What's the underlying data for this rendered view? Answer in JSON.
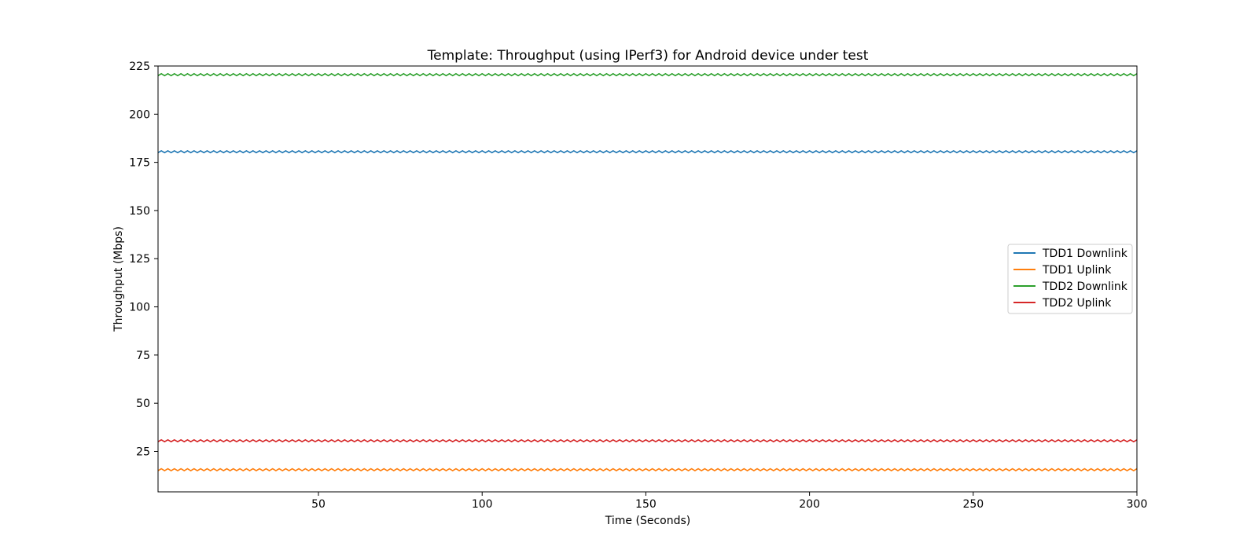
{
  "chart_data": {
    "type": "line",
    "title": "Template: Throughput (using IPerf3) for Android device under test",
    "xlabel": "Time (Seconds)",
    "ylabel": "Throughput (Mbps)",
    "xlim": [
      1,
      300
    ],
    "ylim": [
      4,
      225
    ],
    "xticks": [
      50,
      100,
      150,
      200,
      250,
      300
    ],
    "yticks": [
      25,
      50,
      75,
      100,
      125,
      150,
      175,
      200,
      225
    ],
    "grid": false,
    "legend_position": "center-right",
    "x": {
      "start": 1,
      "end": 300,
      "step": 1
    },
    "series": [
      {
        "name": "TDD1 Downlink",
        "color": "#1f77b4",
        "mean": 180.5,
        "amplitude": 0.5,
        "period": 2
      },
      {
        "name": "TDD1 Uplink",
        "color": "#ff7f0e",
        "mean": 15.5,
        "amplitude": 0.5,
        "period": 2
      },
      {
        "name": "TDD2 Downlink",
        "color": "#2ca02c",
        "mean": 220.5,
        "amplitude": 0.5,
        "period": 2
      },
      {
        "name": "TDD2 Uplink",
        "color": "#d62728",
        "mean": 30.5,
        "amplitude": 0.5,
        "period": 2
      }
    ]
  }
}
